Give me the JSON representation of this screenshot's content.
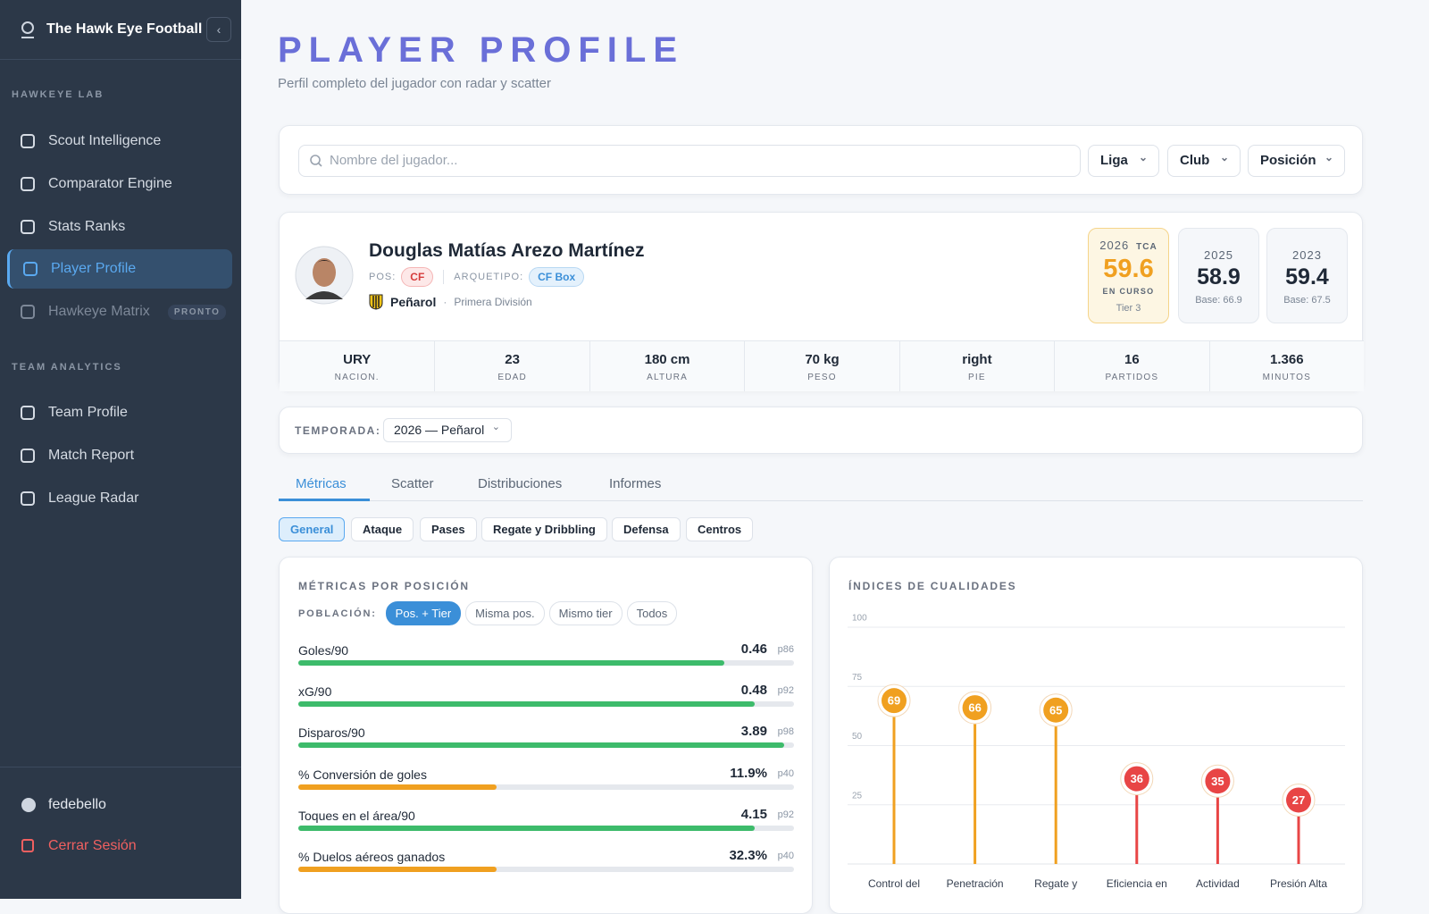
{
  "sidebar": {
    "brand": "The Hawk Eye Football",
    "sections": [
      {
        "title": "HAWKEYE LAB",
        "items": [
          {
            "label": "Scout Intelligence"
          },
          {
            "label": "Comparator Engine"
          },
          {
            "label": "Stats Ranks"
          },
          {
            "label": "Player Profile",
            "active": true
          },
          {
            "label": "Hawkeye Matrix",
            "badge": "PRONTO",
            "disabled": true
          }
        ]
      },
      {
        "title": "TEAM ANALYTICS",
        "items": [
          {
            "label": "Team Profile"
          },
          {
            "label": "Match Report"
          },
          {
            "label": "League Radar"
          }
        ]
      }
    ],
    "user": "fedebello",
    "logout": "Cerrar Sesión"
  },
  "header": {
    "title": "PLAYER PROFILE",
    "subtitle": "Perfil completo del jugador con radar y scatter"
  },
  "search": {
    "placeholder": "Nombre del jugador...",
    "filters": [
      "Liga",
      "Club",
      "Posición"
    ]
  },
  "player": {
    "name": "Douglas Matías Arezo Martínez",
    "pos_label": "POS:",
    "pos": "CF",
    "archetype_label": "ARQUETIPO:",
    "archetype": "CF Box",
    "club": "Peñarol",
    "league": "Primera División",
    "seasons": [
      {
        "year": "2026",
        "tag": "TCA",
        "score": 59.6,
        "status": "EN CURSO",
        "tier": "Tier 3",
        "current": true
      },
      {
        "year": "2025",
        "score": 58.9,
        "base": "Base: 66.9"
      },
      {
        "year": "2023",
        "score": 59.4,
        "base": "Base: 67.5"
      }
    ],
    "stats": [
      {
        "value": "URY",
        "label": "NACION."
      },
      {
        "value": 23,
        "label": "EDAD"
      },
      {
        "value": "180 cm",
        "label": "ALTURA"
      },
      {
        "value": "70 kg",
        "label": "PESO"
      },
      {
        "value": "right",
        "label": "PIE"
      },
      {
        "value": 16,
        "label": "PARTIDOS"
      },
      {
        "value": "1.366",
        "label": "MINUTOS"
      }
    ]
  },
  "season_select": {
    "label": "TEMPORADA:",
    "value": "2026 — Peñarol"
  },
  "tabs": {
    "items": [
      "Métricas",
      "Scatter",
      "Distribuciones",
      "Informes"
    ],
    "active": 0
  },
  "subtabs": {
    "items": [
      "General",
      "Ataque",
      "Pases",
      "Regate y Dribbling",
      "Defensa",
      "Centros"
    ],
    "active": 0
  },
  "metrics_panel": {
    "title": "MÉTRICAS POR POSICIÓN",
    "population_label": "POBLACIÓN:",
    "population_options": [
      "Pos. + Tier",
      "Misma pos.",
      "Mismo tier",
      "Todos"
    ],
    "population_active": 0,
    "metrics": [
      {
        "name": "Goles/90",
        "value": "0.46",
        "percentile": 86,
        "percentile_label": "p86",
        "color": "#3dbb6b"
      },
      {
        "name": "xG/90",
        "value": "0.48",
        "percentile": 92,
        "percentile_label": "p92",
        "color": "#3dbb6b"
      },
      {
        "name": "Disparos/90",
        "value": "3.89",
        "percentile": 98,
        "percentile_label": "p98",
        "color": "#3dbb6b"
      },
      {
        "name": "% Conversión de goles",
        "value": "11.9%",
        "percentile": 40,
        "percentile_label": "p40",
        "color": "#f0a020"
      },
      {
        "name": "Toques en el área/90",
        "value": "4.15",
        "percentile": 92,
        "percentile_label": "p92",
        "color": "#3dbb6b"
      },
      {
        "name": "% Duelos aéreos ganados",
        "value": "32.3%",
        "percentile": 40,
        "percentile_label": "p40",
        "color": "#f0a020"
      }
    ]
  },
  "qualities_panel": {
    "title": "ÍNDICES DE CUALIDADES",
    "chart": {
      "type": "lollipop",
      "categories": [
        "Control del",
        "Penetración",
        "Regate y",
        "Eficiencia en",
        "Actividad",
        "Presión Alta"
      ],
      "values": [
        69,
        66,
        65,
        36,
        35,
        27
      ],
      "colors": [
        "#f0a020",
        "#f0a020",
        "#f0a020",
        "#e84545",
        "#e84545",
        "#e84545"
      ],
      "ylim": [
        0,
        100
      ],
      "yticks": [
        25,
        50,
        75,
        100
      ],
      "grid": true
    }
  }
}
